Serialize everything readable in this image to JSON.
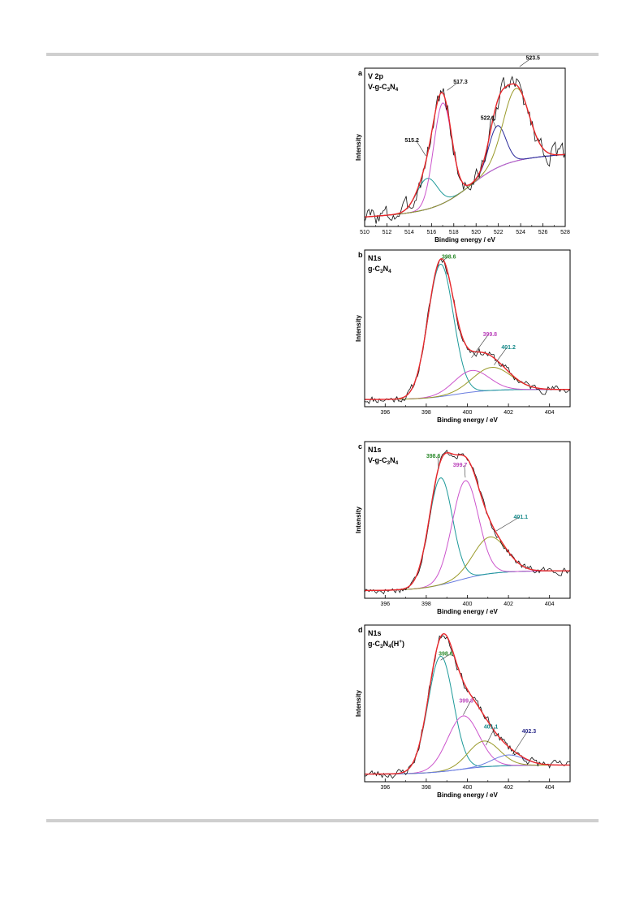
{
  "colors": {
    "raw": "#111111",
    "envelope": "#e8272b",
    "teal": "#1e9a9a",
    "magenta": "#cc55cc",
    "olive": "#9a9a2a",
    "navy": "#2a2a9a",
    "blue": "#6a7de0",
    "green_label": "#2e8b2e",
    "magenta_label": "#bb44bb",
    "teal_label": "#178a8a",
    "navy_label": "#2a2a8a"
  },
  "chart_data": [
    {
      "type": "line",
      "panel_label": "a",
      "title_line1": "V 2p",
      "title_line2": "V-g-C3N4",
      "xlabel": "Binding energy / eV",
      "ylabel": "Intensity",
      "xlim": [
        510,
        528
      ],
      "ylim": [
        0,
        1
      ],
      "x_reversed": false,
      "xticks": [
        "510",
        "512",
        "514",
        "516",
        "518",
        "520",
        "522",
        "524",
        "526",
        "528"
      ],
      "background": {
        "type": "sigmoid",
        "low": 0.06,
        "high": 0.42,
        "center": 519.5,
        "width": 1.6,
        "slope": 0.005
      },
      "peaks": [
        {
          "name": "515.2",
          "center": 515.6,
          "amplitude": 0.22,
          "fwhm": 2.2,
          "color_key": "teal"
        },
        {
          "name": "517.3",
          "center": 517.0,
          "amplitude": 0.72,
          "fwhm": 1.9,
          "color_key": "magenta"
        },
        {
          "name": "522.1",
          "center": 521.9,
          "amplitude": 0.3,
          "fwhm": 1.8,
          "color_key": "navy"
        },
        {
          "name": "523.5",
          "center": 523.6,
          "amplitude": 0.52,
          "fwhm": 2.7,
          "color_key": "olive"
        }
      ],
      "annotations": [
        {
          "text": "515.2",
          "x": 513.6,
          "y": 0.55,
          "tx": 515.5,
          "ty": 0.45,
          "color_key": "raw"
        },
        {
          "text": "517.3",
          "x": 518.6,
          "y": 0.97,
          "tx": 517.4,
          "ty": 0.92,
          "color_key": "raw"
        },
        {
          "text": "522.1",
          "x": 520.4,
          "y": 0.71,
          "tx": 521.8,
          "ty": 0.65,
          "color_key": "raw"
        },
        {
          "text": "523.5",
          "x": 525.1,
          "y": 1.14,
          "tx": 523.9,
          "ty": 1.09,
          "color_key": "raw"
        }
      ],
      "noise": 0.06,
      "seed": 3
    },
    {
      "type": "line",
      "panel_label": "b",
      "title_line1": "N1s",
      "title_line2": "g-C3N4",
      "xlabel": "Binding energy / eV",
      "ylabel": "Intensity",
      "xlim": [
        395,
        405
      ],
      "ylim": [
        0,
        1
      ],
      "x_reversed": false,
      "xticks": [
        "396",
        "398",
        "400",
        "402",
        "404"
      ],
      "background": {
        "type": "sigmoid",
        "low": 0.03,
        "high": 0.1,
        "center": 399.4,
        "width": 0.8,
        "slope": 0.0
      },
      "peaks": [
        {
          "name": "398.6",
          "center": 398.7,
          "amplitude": 0.92,
          "fwhm": 1.45,
          "color_key": "teal"
        },
        {
          "name": "399.8",
          "center": 400.2,
          "amplitude": 0.15,
          "fwhm": 2.0,
          "color_key": "magenta"
        },
        {
          "name": "401.2",
          "center": 401.2,
          "amplitude": 0.16,
          "fwhm": 2.2,
          "color_key": "olive"
        }
      ],
      "annotations": [
        {
          "text": "398.6",
          "x": 399.1,
          "y": 1.01,
          "tx": 398.8,
          "ty": 0.99,
          "color_key": "green_label"
        },
        {
          "text": "399.8",
          "x": 401.1,
          "y": 0.47,
          "tx": 400.2,
          "ty": 0.32,
          "color_key": "magenta_label"
        },
        {
          "text": "401.2",
          "x": 402.0,
          "y": 0.38,
          "tx": 401.3,
          "ty": 0.27,
          "color_key": "teal_label"
        }
      ],
      "noise": 0.025,
      "seed": 11
    },
    {
      "type": "line",
      "panel_label": "c",
      "title_line1": "N1s",
      "title_line2": "V-g-C3N4",
      "xlabel": "Binding energy / eV",
      "ylabel": "Intensity",
      "xlim": [
        395,
        405
      ],
      "ylim": [
        0,
        1
      ],
      "x_reversed": false,
      "xticks": [
        "396",
        "398",
        "400",
        "402",
        "404"
      ],
      "background": {
        "type": "sigmoid",
        "low": 0.03,
        "high": 0.16,
        "center": 399.5,
        "width": 0.9,
        "slope": 0.0
      },
      "peaks": [
        {
          "name": "398.6",
          "center": 398.7,
          "amplitude": 0.7,
          "fwhm": 1.35,
          "color_key": "teal"
        },
        {
          "name": "399.7",
          "center": 399.9,
          "amplitude": 0.64,
          "fwhm": 1.5,
          "color_key": "magenta"
        },
        {
          "name": "401.1",
          "center": 401.1,
          "amplitude": 0.24,
          "fwhm": 1.9,
          "color_key": "olive"
        }
      ],
      "annotations": [
        {
          "text": "398.6",
          "x": 398.0,
          "y": 0.9,
          "tx": 398.6,
          "ty": 0.83,
          "color_key": "green_label"
        },
        {
          "text": "399.7",
          "x": 399.3,
          "y": 0.84,
          "tx": 399.9,
          "ty": 0.77,
          "color_key": "magenta_label"
        },
        {
          "text": "401.1",
          "x": 402.6,
          "y": 0.5,
          "tx": 401.4,
          "ty": 0.42,
          "color_key": "teal_label"
        }
      ],
      "noise": 0.02,
      "seed": 17
    },
    {
      "type": "line",
      "panel_label": "d",
      "title_line1": "N1s",
      "title_line2": "g-C3N4(H+)",
      "xlabel": "Binding energy / eV",
      "ylabel": "Intensity",
      "xlim": [
        395,
        405
      ],
      "ylim": [
        0,
        1
      ],
      "x_reversed": false,
      "xticks": [
        "396",
        "398",
        "400",
        "402",
        "404"
      ],
      "background": {
        "type": "sigmoid",
        "low": 0.03,
        "high": 0.09,
        "center": 399.6,
        "width": 0.9,
        "slope": 0.0
      },
      "peaks": [
        {
          "name": "398.6",
          "center": 398.7,
          "amplitude": 0.76,
          "fwhm": 1.45,
          "color_key": "teal"
        },
        {
          "name": "399.8",
          "center": 399.8,
          "amplitude": 0.35,
          "fwhm": 1.8,
          "color_key": "magenta"
        },
        {
          "name": "401.1",
          "center": 400.8,
          "amplitude": 0.17,
          "fwhm": 1.8,
          "color_key": "olive"
        },
        {
          "name": "402.3",
          "center": 402.0,
          "amplitude": 0.07,
          "fwhm": 1.8,
          "color_key": "blue"
        }
      ],
      "annotations": [
        {
          "text": "398.6",
          "x": 398.6,
          "y": 0.81,
          "tx": 398.7,
          "ty": 0.78,
          "color_key": "green_label"
        },
        {
          "text": "399.8",
          "x": 399.6,
          "y": 0.5,
          "tx": 399.8,
          "ty": 0.42,
          "color_key": "magenta_label"
        },
        {
          "text": "401.1",
          "x": 400.8,
          "y": 0.33,
          "tx": 400.9,
          "ty": 0.22,
          "color_key": "teal_label"
        },
        {
          "text": "402.3",
          "x": 403.0,
          "y": 0.3,
          "tx": 402.2,
          "ty": 0.16,
          "color_key": "navy_label"
        }
      ],
      "noise": 0.025,
      "seed": 23
    }
  ]
}
